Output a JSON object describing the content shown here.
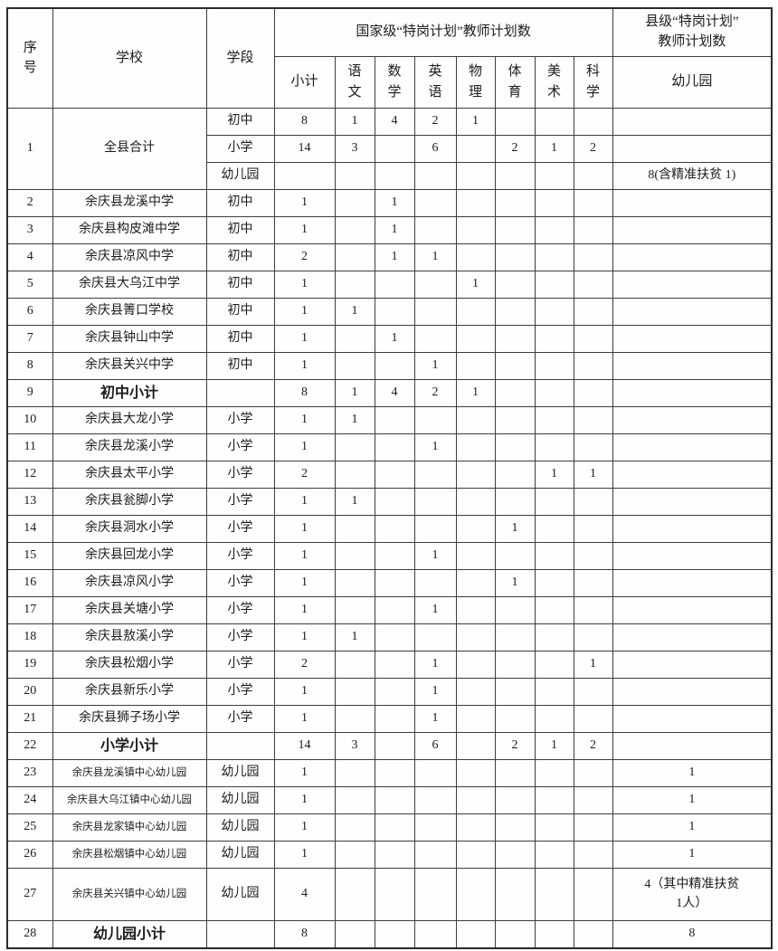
{
  "colors": {
    "background": "#fefefe",
    "text": "#1c1c1c",
    "border": "#3d3d3d",
    "outer_border": "#2a2a2a"
  },
  "table": {
    "header": {
      "col_no": [
        "序",
        "号"
      ],
      "col_school": "学校",
      "col_stage": "学段",
      "group_national": "国家级“特岗计划”教师计划数",
      "group_county": [
        "县级“特岗计划”",
        "教师计划数"
      ],
      "subtotal": "小计",
      "subjects": [
        [
          "语",
          "文"
        ],
        [
          "数",
          "学"
        ],
        [
          "英",
          "语"
        ],
        [
          "物",
          "理"
        ],
        [
          "体",
          "育"
        ],
        [
          "美",
          "术"
        ],
        [
          "科",
          "学"
        ]
      ],
      "kindergarten": "幼儿园"
    },
    "rows": [
      {
        "no": "1",
        "school": "全县合计",
        "sub": [
          {
            "stage": "初中",
            "values": [
              "8",
              "1",
              "4",
              "2",
              "1",
              "",
              "",
              ""
            ],
            "kg": ""
          },
          {
            "stage": "小学",
            "values": [
              "14",
              "3",
              "",
              "6",
              "",
              "2",
              "1",
              "2"
            ],
            "kg": ""
          },
          {
            "stage": "幼儿园",
            "values": [
              "",
              "",
              "",
              "",
              "",
              "",
              "",
              ""
            ],
            "kg": "8(含精准扶贫 1)"
          }
        ]
      },
      {
        "no": "2",
        "school": "余庆县龙溪中学",
        "stage": "初中",
        "values": [
          "1",
          "",
          "1",
          "",
          "",
          "",
          "",
          ""
        ],
        "kg": ""
      },
      {
        "no": "3",
        "school": "余庆县构皮滩中学",
        "stage": "初中",
        "values": [
          "1",
          "",
          "1",
          "",
          "",
          "",
          "",
          ""
        ],
        "kg": ""
      },
      {
        "no": "4",
        "school": "余庆县凉风中学",
        "stage": "初中",
        "values": [
          "2",
          "",
          "1",
          "1",
          "",
          "",
          "",
          ""
        ],
        "kg": ""
      },
      {
        "no": "5",
        "school": "余庆县大乌江中学",
        "stage": "初中",
        "values": [
          "1",
          "",
          "",
          "",
          "1",
          "",
          "",
          ""
        ],
        "kg": ""
      },
      {
        "no": "6",
        "school": "余庆县箐口学校",
        "stage": "初中",
        "values": [
          "1",
          "1",
          "",
          "",
          "",
          "",
          "",
          ""
        ],
        "kg": ""
      },
      {
        "no": "7",
        "school": "余庆县钟山中学",
        "stage": "初中",
        "values": [
          "1",
          "",
          "1",
          "",
          "",
          "",
          "",
          ""
        ],
        "kg": ""
      },
      {
        "no": "8",
        "school": "余庆县关兴中学",
        "stage": "初中",
        "values": [
          "1",
          "",
          "",
          "1",
          "",
          "",
          "",
          ""
        ],
        "kg": ""
      },
      {
        "no": "9",
        "school": "初中小计",
        "stage": "",
        "values": [
          "8",
          "1",
          "4",
          "2",
          "1",
          "",
          "",
          ""
        ],
        "kg": "",
        "bold": true
      },
      {
        "no": "10",
        "school": "余庆县大龙小学",
        "stage": "小学",
        "values": [
          "1",
          "1",
          "",
          "",
          "",
          "",
          "",
          ""
        ],
        "kg": ""
      },
      {
        "no": "11",
        "school": "余庆县龙溪小学",
        "stage": "小学",
        "values": [
          "1",
          "",
          "",
          "1",
          "",
          "",
          "",
          ""
        ],
        "kg": ""
      },
      {
        "no": "12",
        "school": "余庆县太平小学",
        "stage": "小学",
        "values": [
          "2",
          "",
          "",
          "",
          "",
          "",
          "1",
          "1"
        ],
        "kg": ""
      },
      {
        "no": "13",
        "school": "余庆县瓮脚小学",
        "stage": "小学",
        "values": [
          "1",
          "1",
          "",
          "",
          "",
          "",
          "",
          ""
        ],
        "kg": ""
      },
      {
        "no": "14",
        "school": "余庆县洞水小学",
        "stage": "小学",
        "values": [
          "1",
          "",
          "",
          "",
          "",
          "1",
          "",
          ""
        ],
        "kg": ""
      },
      {
        "no": "15",
        "school": "余庆县回龙小学",
        "stage": "小学",
        "values": [
          "1",
          "",
          "",
          "1",
          "",
          "",
          "",
          ""
        ],
        "kg": ""
      },
      {
        "no": "16",
        "school": "余庆县凉风小学",
        "stage": "小学",
        "values": [
          "1",
          "",
          "",
          "",
          "",
          "1",
          "",
          ""
        ],
        "kg": ""
      },
      {
        "no": "17",
        "school": "余庆县关塘小学",
        "stage": "小学",
        "values": [
          "1",
          "",
          "",
          "1",
          "",
          "",
          "",
          ""
        ],
        "kg": ""
      },
      {
        "no": "18",
        "school": "余庆县敖溪小学",
        "stage": "小学",
        "values": [
          "1",
          "1",
          "",
          "",
          "",
          "",
          "",
          ""
        ],
        "kg": ""
      },
      {
        "no": "19",
        "school": "余庆县松烟小学",
        "stage": "小学",
        "values": [
          "2",
          "",
          "",
          "1",
          "",
          "",
          "",
          "1"
        ],
        "kg": ""
      },
      {
        "no": "20",
        "school": "余庆县新乐小学",
        "stage": "小学",
        "values": [
          "1",
          "",
          "",
          "1",
          "",
          "",
          "",
          ""
        ],
        "kg": ""
      },
      {
        "no": "21",
        "school": "余庆县狮子场小学",
        "stage": "小学",
        "values": [
          "1",
          "",
          "",
          "1",
          "",
          "",
          "",
          ""
        ],
        "kg": ""
      },
      {
        "no": "22",
        "school": "小学小计",
        "stage": "",
        "values": [
          "14",
          "3",
          "",
          "6",
          "",
          "2",
          "1",
          "2"
        ],
        "kg": "",
        "bold": true
      },
      {
        "no": "23",
        "school": "余庆县龙溪镇中心幼儿园",
        "stage": "幼儿园",
        "values": [
          "1",
          "",
          "",
          "",
          "",
          "",
          "",
          ""
        ],
        "kg": "1",
        "small": true
      },
      {
        "no": "24",
        "school": "余庆县大乌江镇中心幼儿园",
        "stage": "幼儿园",
        "values": [
          "1",
          "",
          "",
          "",
          "",
          "",
          "",
          ""
        ],
        "kg": "1",
        "small": true
      },
      {
        "no": "25",
        "school": "余庆县龙家镇中心幼儿园",
        "stage": "幼儿园",
        "values": [
          "1",
          "",
          "",
          "",
          "",
          "",
          "",
          ""
        ],
        "kg": "1",
        "small": true
      },
      {
        "no": "26",
        "school": "余庆县松烟镇中心幼儿园",
        "stage": "幼儿园",
        "values": [
          "1",
          "",
          "",
          "",
          "",
          "",
          "",
          ""
        ],
        "kg": "1",
        "small": true
      },
      {
        "no": "27",
        "school": "余庆县关兴镇中心幼儿园",
        "stage": "幼儿园",
        "values": [
          "4",
          "",
          "",
          "",
          "",
          "",
          "",
          ""
        ],
        "kg": [
          "4（其中精准扶贫",
          "1人）"
        ],
        "small": true,
        "tall": true
      },
      {
        "no": "28",
        "school": "幼儿园小计",
        "stage": "",
        "values": [
          "8",
          "",
          "",
          "",
          "",
          "",
          "",
          ""
        ],
        "kg": "8",
        "bold": true
      }
    ]
  }
}
